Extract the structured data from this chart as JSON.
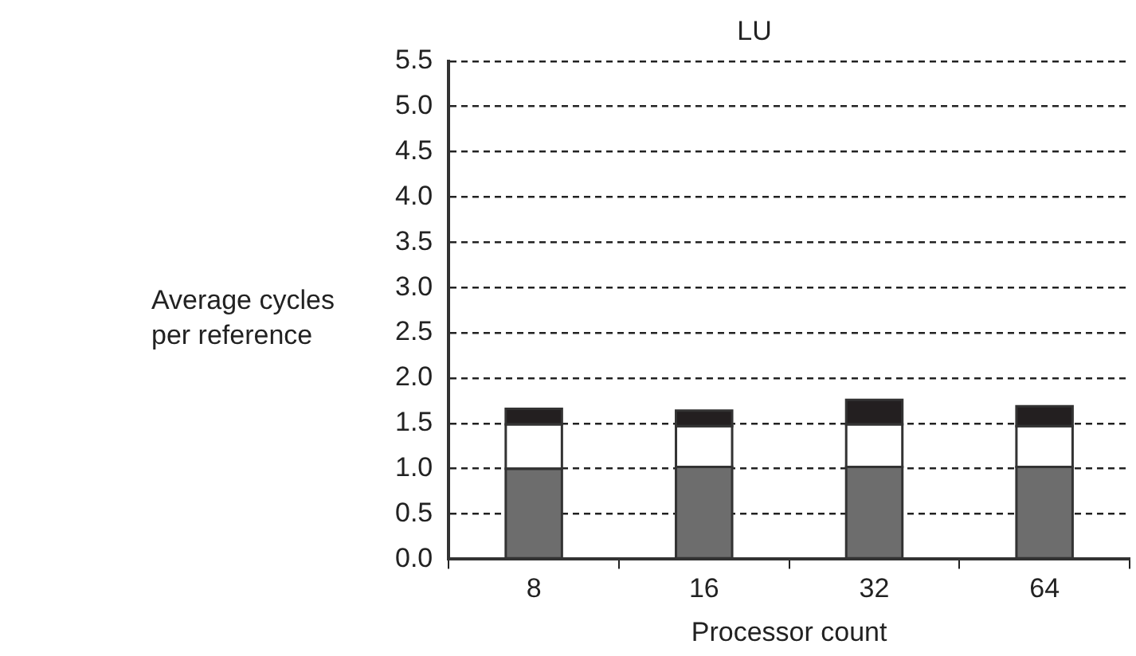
{
  "chart_data": {
    "type": "bar",
    "title": "LU",
    "xlabel": "Processor count",
    "ylabel": "Average cycles per reference",
    "categories": [
      "8",
      "16",
      "32",
      "64"
    ],
    "series": [
      {
        "color": "#6d6d6d",
        "values": [
          1.0,
          1.02,
          1.02,
          1.02
        ]
      },
      {
        "color": "#ffffff",
        "values": [
          0.49,
          0.45,
          0.47,
          0.45
        ]
      },
      {
        "color": "#231f20",
        "values": [
          0.17,
          0.17,
          0.27,
          0.22
        ]
      }
    ],
    "stacked": true,
    "ylim": [
      0,
      5.5
    ],
    "yticks": [
      {
        "value": 0,
        "label": "0.0"
      },
      0.5,
      {
        "value": 1,
        "label": "1.0"
      },
      1.5,
      {
        "value": 2,
        "label": "2.0"
      },
      2.5,
      {
        "value": 3,
        "label": "3.0"
      },
      3.5,
      {
        "value": 4,
        "label": "4.0"
      },
      4.5,
      {
        "value": 5,
        "label": "5.0"
      },
      5.5
    ],
    "grid": "y",
    "legend": false
  }
}
